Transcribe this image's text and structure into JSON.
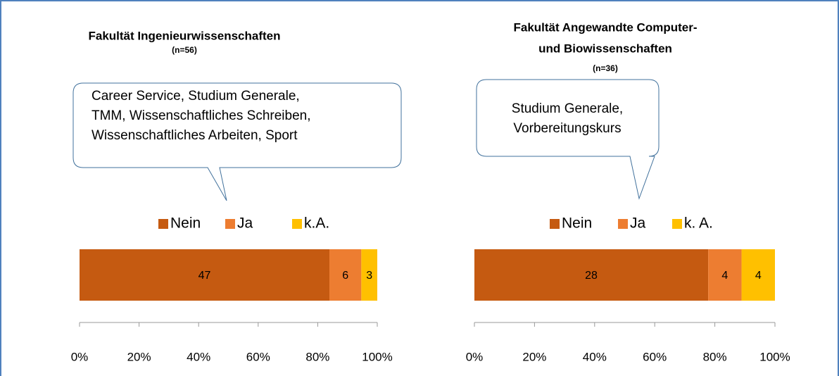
{
  "chart_data": [
    {
      "type": "bar",
      "title": [
        "Fakultät Ingenieurwissenschaften"
      ],
      "subtitle": "(n=56)",
      "annotation": [
        "Career Service, Studium Generale,",
        "TMM, Wissenschaftliches Schreiben,",
        "Wissenschaftliches Arbeiten, Sport"
      ],
      "series": [
        {
          "name": "Nein",
          "color": "#c55a11",
          "values": [
            47
          ]
        },
        {
          "name": "Ja",
          "color": "#ed7d31",
          "values": [
            6
          ]
        },
        {
          "name": "k.A.",
          "color": "#ffc000",
          "values": [
            3
          ]
        }
      ],
      "xlim": [
        0,
        100
      ],
      "xticks": [
        {
          "value": 0,
          "label": "0%"
        },
        {
          "value": 20,
          "label": "20%"
        },
        {
          "value": 40,
          "label": "40%"
        },
        {
          "value": 60,
          "label": "60%"
        },
        {
          "value": 80,
          "label": "80%"
        },
        {
          "value": 100,
          "label": "100%"
        }
      ]
    },
    {
      "type": "bar",
      "title": [
        "Fakultät Angewandte Computer-",
        "und Biowissenschaften"
      ],
      "subtitle": "(n=36)",
      "annotation": [
        "Studium Generale,",
        "Vorbereitungskurs"
      ],
      "series": [
        {
          "name": "Nein",
          "color": "#c55a11",
          "values": [
            28
          ]
        },
        {
          "name": "Ja",
          "color": "#ed7d31",
          "values": [
            4
          ]
        },
        {
          "name": "k. A.",
          "color": "#ffc000",
          "values": [
            4
          ]
        }
      ],
      "xlim": [
        0,
        100
      ],
      "xticks": [
        {
          "value": 0,
          "label": "0%"
        },
        {
          "value": 20,
          "label": "20%"
        },
        {
          "value": 40,
          "label": "40%"
        },
        {
          "value": 60,
          "label": "60%"
        },
        {
          "value": 80,
          "label": "80%"
        },
        {
          "value": 100,
          "label": "100%"
        }
      ]
    }
  ]
}
